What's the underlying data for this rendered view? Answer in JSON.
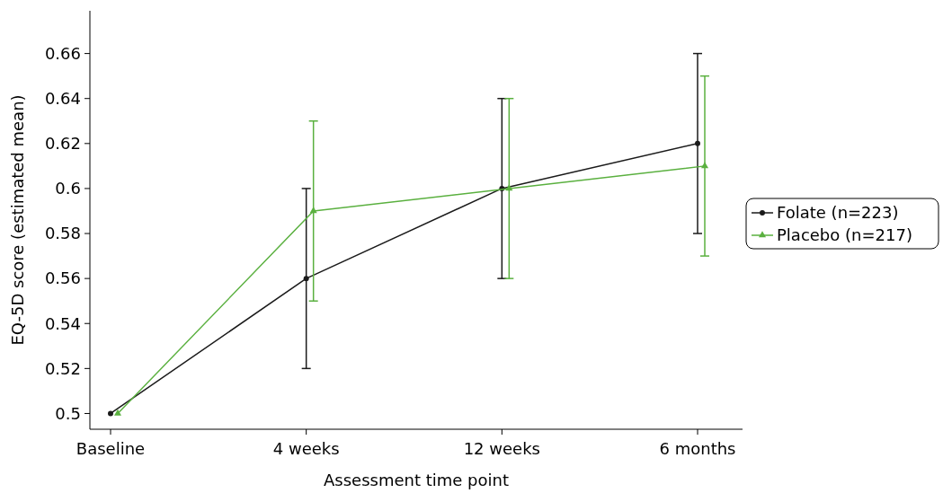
{
  "chart_data": {
    "type": "line",
    "xlabel": "Assessment time point",
    "ylabel": "EQ-5D score (estimated mean)",
    "categories": [
      "Baseline",
      "4 weeks",
      "12 weeks",
      "6 months"
    ],
    "series": [
      {
        "name": "Folate (n=223)",
        "color": "#1a1a1a",
        "marker": "circle",
        "values": [
          0.5,
          0.56,
          0.6,
          0.62
        ],
        "errors": [
          null,
          [
            0.52,
            0.6
          ],
          [
            0.56,
            0.64
          ],
          [
            0.58,
            0.66
          ]
        ]
      },
      {
        "name": "Placebo (n=217)",
        "color": "#5ab03f",
        "marker": "triangle",
        "values": [
          0.5,
          0.59,
          0.6,
          0.61
        ],
        "errors": [
          null,
          [
            0.55,
            0.63
          ],
          [
            0.56,
            0.64
          ],
          [
            0.57,
            0.65
          ]
        ]
      }
    ],
    "ylim": [
      0.493,
      0.679
    ],
    "yticks": [
      0.5,
      0.52,
      0.54,
      0.56,
      0.58,
      0.6,
      0.62,
      0.64,
      0.66
    ],
    "grid": false,
    "legend": "right",
    "line_style": "solid"
  }
}
